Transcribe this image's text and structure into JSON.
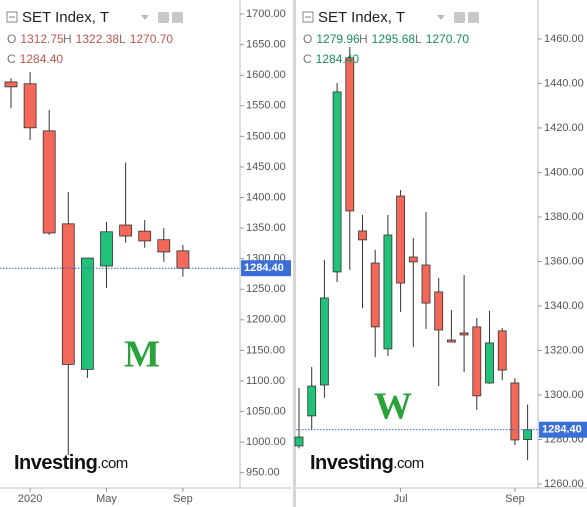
{
  "chart_data": [
    {
      "type": "candlestick",
      "title": "SET Index, T",
      "legend": [
        {
          "label": "O",
          "value": "1312.75"
        },
        {
          "label": "H",
          "value": "1322.38"
        },
        {
          "label": "L",
          "value": "1270.70"
        },
        {
          "label": "C",
          "value": "1284.40"
        }
      ],
      "categories": [
        null,
        "2020",
        null,
        null,
        null,
        "May",
        null,
        null,
        null,
        "Sep"
      ],
      "open": [
        1589,
        1586,
        1509,
        1357,
        1119,
        1288,
        1355,
        1345,
        1331,
        1312.75
      ],
      "high": [
        1595,
        1605,
        1543,
        1409,
        1301,
        1360,
        1457,
        1363,
        1350,
        1322.38
      ],
      "low": [
        1546,
        1494,
        1339,
        979,
        1105,
        1252,
        1326,
        1318,
        1295,
        1270.7
      ],
      "close": [
        1581,
        1514,
        1342,
        1127,
        1301,
        1344,
        1337,
        1329,
        1311,
        1284.4
      ],
      "up_color": "#22c17a",
      "down_color": "#f4685a",
      "ylim": [
        925,
        1723
      ],
      "yticks": [
        {
          "value": 950,
          "label": "950.00"
        },
        {
          "value": 1000,
          "label": "1000.00"
        },
        {
          "value": 1050,
          "label": "1050.00"
        },
        {
          "value": 1100,
          "label": "1100.00"
        },
        {
          "value": 1150,
          "label": "1150.00"
        },
        {
          "value": 1200,
          "label": "1200.00"
        },
        {
          "value": 1250,
          "label": "1250.00"
        },
        {
          "value": 1300,
          "label": "1300.00"
        },
        {
          "value": 1350,
          "label": "1350.00"
        },
        {
          "value": 1400,
          "label": "1400.00"
        },
        {
          "value": 1450,
          "label": "1450.00"
        },
        {
          "value": 1500,
          "label": "1500.00"
        },
        {
          "value": 1550,
          "label": "1550.00"
        },
        {
          "value": 1600,
          "label": "1600.00"
        },
        {
          "value": 1650,
          "label": "1650.00"
        },
        {
          "value": 1700,
          "label": "1700.00"
        }
      ],
      "price_line": {
        "value": 1284.4,
        "label": "1284.40"
      },
      "annotation": "M",
      "watermark": [
        "Investing",
        ".com"
      ]
    },
    {
      "type": "candlestick",
      "title": "SET Index, T",
      "legend": [
        {
          "label": "O",
          "value": "1279.96"
        },
        {
          "label": "H",
          "value": "1295.68"
        },
        {
          "label": "L",
          "value": "1270.70"
        },
        {
          "label": "C",
          "value": "1284.40"
        }
      ],
      "categories": [
        null,
        null,
        null,
        null,
        null,
        null,
        null,
        null,
        "Jul",
        null,
        null,
        null,
        null,
        null,
        null,
        null,
        null,
        "Sep",
        null
      ],
      "open": [
        1277.1,
        1290.6,
        1304.5,
        1355.3,
        1451.5,
        1373.7,
        1359.3,
        1320.7,
        1389.4,
        1362,
        1358.4,
        1346.3,
        1324.7,
        1327.9,
        1330.6,
        1305.4,
        1328.8,
        1305.4,
        1279.96
      ],
      "high": [
        1303.1,
        1312.6,
        1360.7,
        1440.2,
        1456.4,
        1380.9,
        1365.2,
        1380.9,
        1392.1,
        1370.6,
        1382.2,
        1352.6,
        1338.2,
        1353.9,
        1334.6,
        1337.8,
        1330.1,
        1307.6,
        1295.68
      ],
      "low": [
        1276,
        1284.3,
        1298.7,
        1350.8,
        1356.2,
        1339,
        1317,
        1317.5,
        1337.3,
        1321.6,
        1329.7,
        1304,
        1323.8,
        1310.3,
        1293.3,
        1305,
        1306.7,
        1277.5,
        1270.7
      ],
      "close": [
        1281.1,
        1304,
        1343.6,
        1436.2,
        1382.7,
        1369.7,
        1330.6,
        1371.9,
        1350.3,
        1359.8,
        1341.3,
        1329.2,
        1323.8,
        1327,
        1299.6,
        1323.4,
        1311.2,
        1279.8,
        1284.4
      ],
      "up_color": "#22c17a",
      "down_color": "#f4685a",
      "ylim": [
        1258.2,
        1477.5
      ],
      "yticks": [
        {
          "value": 1260,
          "label": "1260.00"
        },
        {
          "value": 1280,
          "label": "1280.00"
        },
        {
          "value": 1300,
          "label": "1300.00"
        },
        {
          "value": 1320,
          "label": "1320.00"
        },
        {
          "value": 1340,
          "label": "1340.00"
        },
        {
          "value": 1360,
          "label": "1360.00"
        },
        {
          "value": 1380,
          "label": "1380.00"
        },
        {
          "value": 1400,
          "label": "1400.00"
        },
        {
          "value": 1420,
          "label": "1420.00"
        },
        {
          "value": 1440,
          "label": "1440.00"
        },
        {
          "value": 1460,
          "label": "1460.00"
        }
      ],
      "price_line": {
        "value": 1284.4,
        "label": "1284.40"
      },
      "annotation": "W",
      "watermark": [
        "Investing",
        ".com"
      ]
    }
  ]
}
